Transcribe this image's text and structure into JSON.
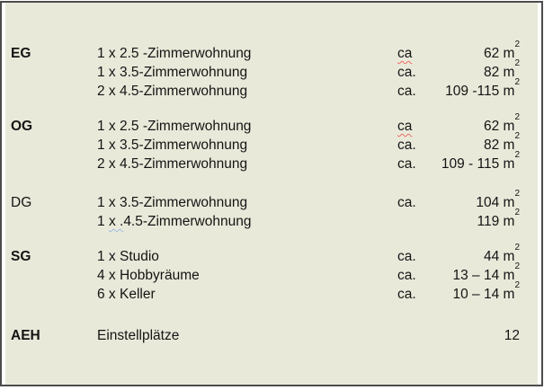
{
  "document": {
    "background": "#e9e9da",
    "frame_border": "#4c4c4c",
    "text_color": "#141414",
    "spellcheck_underline_color": "#ef6b64",
    "grammar_underline_color": "#9fbde0",
    "unit_superscript": "m²",
    "groups": [
      {
        "floor": "EG",
        "bold": true,
        "rows": [
          {
            "desc": "1 x 2.5 -Zimmerwohnung",
            "ca": "ca",
            "ca_spellcheck": true,
            "value": "62",
            "unit": "m²"
          },
          {
            "desc": "1 x 3.5-Zimmerwohnung",
            "ca": "ca.",
            "value": "82",
            "unit": "m²"
          },
          {
            "desc": "2 x 4.5-Zimmerwohnung",
            "ca": "ca.",
            "value": "109 -115",
            "unit": "m²"
          }
        ]
      },
      {
        "floor": "OG",
        "bold": true,
        "rows": [
          {
            "desc": "1 x 2.5 -Zimmerwohnung",
            "ca": "ca",
            "ca_spellcheck": true,
            "value": "62",
            "unit": "m²"
          },
          {
            "desc": "1 x 3.5-Zimmerwohnung",
            "ca": "ca.",
            "value": "82",
            "unit": "m²"
          },
          {
            "desc": "2 x 4.5-Zimmerwohnung",
            "ca": "ca.",
            "value": "109 - 115",
            "unit": "m²"
          }
        ]
      },
      {
        "floor": "DG",
        "bold": false,
        "rows": [
          {
            "desc": "1 x 3.5-Zimmerwohnung",
            "ca": "ca.",
            "value": "104",
            "unit": "m²"
          },
          {
            "desc_parts": {
              "pre": "1 ",
              "marked": "x .",
              "post": "4.5-Zimmerwohnung"
            },
            "value": "119",
            "unit": "m²"
          }
        ]
      },
      {
        "floor": "SG",
        "bold": true,
        "rows": [
          {
            "desc": "1 x Studio",
            "ca": "ca.",
            "value": "44",
            "unit": "m²"
          },
          {
            "desc": "4 x Hobbyräume",
            "ca": "ca.",
            "value": "13 – 14",
            "unit": "m²"
          },
          {
            "desc": "6 x Keller",
            "ca": "ca.",
            "value": "10 – 14",
            "unit": "m²"
          }
        ]
      },
      {
        "floor": "AEH",
        "bold": true,
        "rows": [
          {
            "desc": "Einstellplätze",
            "value": "12"
          }
        ]
      }
    ]
  }
}
